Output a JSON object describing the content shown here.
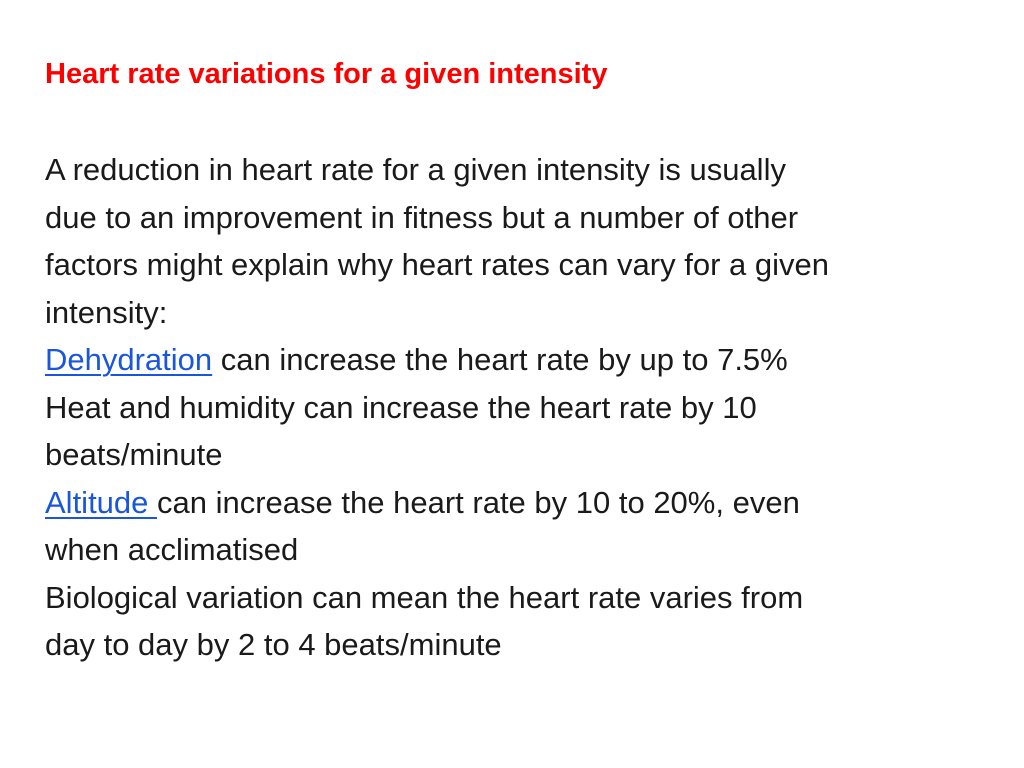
{
  "slide": {
    "title": "Heart rate variations for a given intensity",
    "intro_lines": [
      "A reduction in heart rate for a given intensity is usually",
      "due to an improvement in fitness but a number of other",
      "factors might explain why heart rates can vary for a given",
      "intensity:"
    ],
    "dehydration": {
      "link_text": "Dehydration",
      "rest": " can increase the heart rate by up to 7.5%"
    },
    "heat_lines": [
      "Heat and humidity can increase the heart rate by 10",
      "beats/minute"
    ],
    "altitude": {
      "link_text": "Altitude ",
      "rest": "can increase the heart rate by 10 to 20%, even",
      "line2": "when acclimatised"
    },
    "biological_lines": [
      "Biological variation can mean the heart rate varies from",
      "day to day by 2 to 4 beats/minute"
    ]
  },
  "colors": {
    "title": "#ff0000",
    "text": "#1a1a1a",
    "link": "#1a56db",
    "background": "#ffffff"
  }
}
